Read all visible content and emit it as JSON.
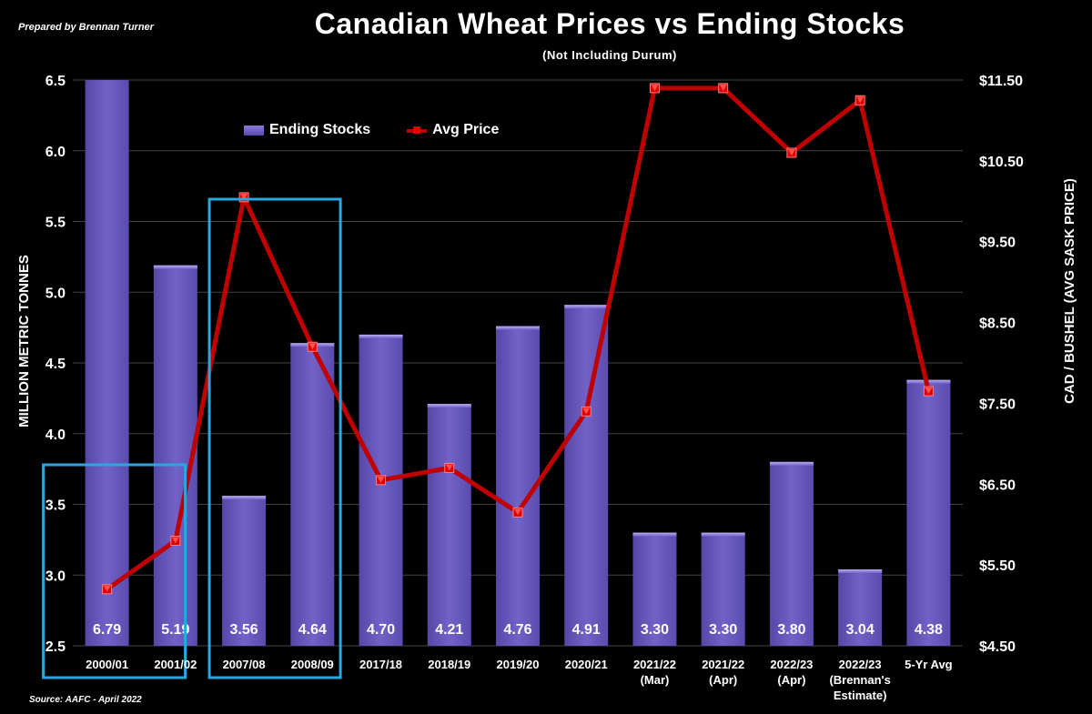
{
  "header": {
    "prepared_by": "Prepared by Brennan Turner",
    "title": "Canadian Wheat Prices vs Ending Stocks",
    "subtitle": "(Not Including Durum)"
  },
  "footer": {
    "source_label": "Source:",
    "source_text": "AAFC -  April 2022"
  },
  "colors": {
    "background": "#000000",
    "bar": "#6b5bc2",
    "line": "#c00000",
    "highlight_box": "#29a8e0",
    "grid": "#444444"
  },
  "chart_data": {
    "type": "bar",
    "categories": [
      "2000/01",
      "2001/02",
      "2007/08",
      "2008/09",
      "2017/18",
      "2018/19",
      "2019/20",
      "2020/21",
      "2021/22\n(Mar)",
      "2021/22\n(Apr)",
      "2022/23\n(Apr)",
      "2022/23\n(Brennan's\nEstimate)",
      "5-Yr Avg"
    ],
    "series": [
      {
        "name": "Ending Stocks",
        "type": "bar",
        "axis": "left",
        "values": [
          6.79,
          5.19,
          3.56,
          4.64,
          4.7,
          4.21,
          4.76,
          4.91,
          3.3,
          3.3,
          3.8,
          3.04,
          4.38
        ],
        "data_labels": [
          "6.79",
          "5.19",
          "3.56",
          "4.64",
          "4.70",
          "4.21",
          "4.76",
          "4.91",
          "3.30",
          "3.30",
          "3.80",
          "3.04",
          "4.38"
        ]
      },
      {
        "name": "Avg Price",
        "type": "line",
        "axis": "right",
        "values": [
          5.2,
          5.8,
          10.05,
          8.2,
          6.55,
          6.7,
          6.15,
          7.4,
          11.4,
          11.4,
          10.6,
          11.25,
          7.65
        ]
      }
    ],
    "ylabel": "MILLION METRIC TONNES",
    "ylim": [
      2.5,
      6.5
    ],
    "yticks": [
      "2.5",
      "3.0",
      "3.5",
      "4.0",
      "4.5",
      "5.0",
      "5.5",
      "6.0",
      "6.5"
    ],
    "y2label": "CAD / BUSHEL (AVG SASK PRICE)",
    "y2lim": [
      4.5,
      11.5
    ],
    "y2ticks": [
      "$4.50",
      "$5.50",
      "$6.50",
      "$7.50",
      "$8.50",
      "$9.50",
      "$10.50",
      "$11.50"
    ],
    "grid": true,
    "legend": "top-left",
    "highlight_groups": [
      [
        "2000/01",
        "2001/02"
      ],
      [
        "2007/08",
        "2008/09"
      ]
    ]
  }
}
